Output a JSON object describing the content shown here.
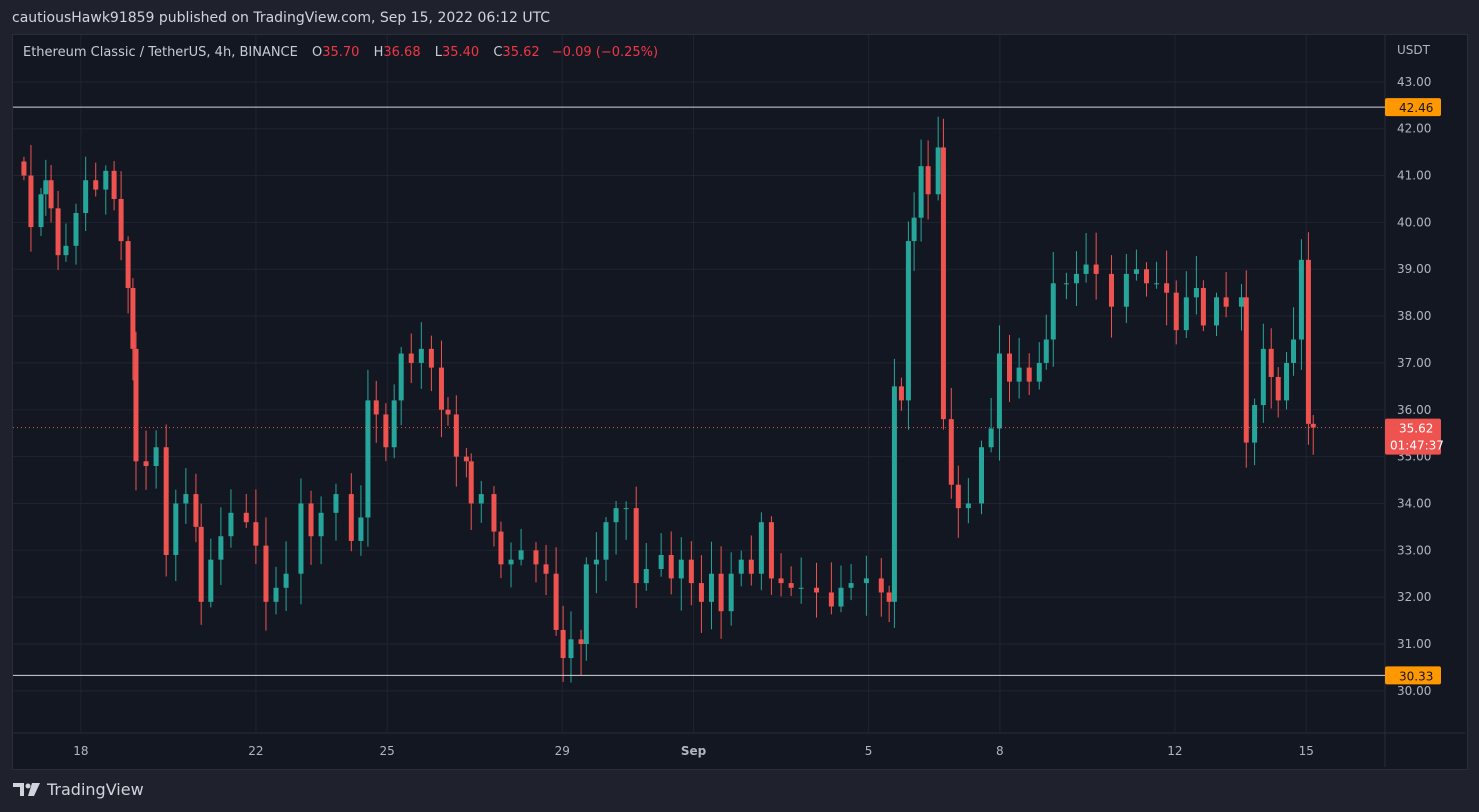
{
  "published": "cautiousHawk91859 published on TradingView.com, Sep 15, 2022 06:12 UTC",
  "brand": "TradingView",
  "legend": {
    "symbol": "Ethereum Classic / TetherUS, 4h, BINANCE",
    "o_label": "O",
    "o": "35.70",
    "h_label": "H",
    "h": "36.68",
    "l_label": "L",
    "l": "35.40",
    "c_label": "C",
    "c": "35.62",
    "change": "−0.09 (−0.25%)"
  },
  "colors": {
    "up": "#26a69a",
    "down": "#ef5350",
    "level": "#ff9800",
    "bg": "#131722",
    "grid": "#1f2430"
  },
  "chart_data": {
    "type": "candlestick",
    "title": "Ethereum Classic / TetherUS, 4h, BINANCE",
    "ylabel": "USDT",
    "ylim": [
      29.1,
      44.0
    ],
    "y_ticks": [
      "30.00",
      "31.00",
      "32.00",
      "33.00",
      "34.00",
      "35.00",
      "36.00",
      "37.00",
      "38.00",
      "39.00",
      "40.00",
      "41.00",
      "42.00",
      "43.00"
    ],
    "x_ticks": [
      {
        "day": 18,
        "label": "18"
      },
      {
        "day": 22,
        "label": "22"
      },
      {
        "day": 25,
        "label": "25"
      },
      {
        "day": 29,
        "label": "29"
      },
      {
        "day": 32,
        "label": "Sep"
      },
      {
        "day": 36,
        "label": "5"
      },
      {
        "day": 39,
        "label": "8"
      },
      {
        "day": 43,
        "label": "12"
      },
      {
        "day": 46,
        "label": "15"
      }
    ],
    "xlim_days": [
      16.45,
      47.8
    ],
    "x_unit": "day of Aug 2022 (32 = Sep 1)",
    "horizontal_levels": [
      {
        "price": 42.46,
        "label": "42.46"
      },
      {
        "price": 30.33,
        "label": "30.33"
      }
    ],
    "last_price": {
      "price": 35.62,
      "label": "35.62",
      "countdown": "01:47:37"
    },
    "candles_t_close": [
      [
        16.7,
        41.0
      ],
      [
        16.86,
        39.9
      ],
      [
        17.09,
        40.6
      ],
      [
        17.2,
        40.9
      ],
      [
        17.32,
        40.3
      ],
      [
        17.48,
        39.3
      ],
      [
        17.66,
        39.5
      ],
      [
        17.89,
        40.2
      ],
      [
        18.11,
        40.9
      ],
      [
        18.34,
        40.7
      ],
      [
        18.57,
        41.1
      ],
      [
        18.76,
        40.5
      ],
      [
        18.92,
        39.6
      ],
      [
        19.08,
        38.6
      ],
      [
        19.19,
        37.3
      ],
      [
        19.26,
        34.9
      ],
      [
        19.49,
        34.8
      ],
      [
        19.72,
        35.2
      ],
      [
        19.95,
        32.9
      ],
      [
        20.17,
        34.0
      ],
      [
        20.4,
        34.2
      ],
      [
        20.63,
        33.5
      ],
      [
        20.75,
        31.9
      ],
      [
        20.97,
        32.8
      ],
      [
        21.2,
        33.3
      ],
      [
        21.43,
        33.8
      ],
      [
        21.78,
        33.6
      ],
      [
        22.0,
        33.1
      ],
      [
        22.23,
        31.9
      ],
      [
        22.46,
        32.2
      ],
      [
        22.69,
        32.5
      ],
      [
        23.03,
        34.0
      ],
      [
        23.26,
        33.3
      ],
      [
        23.49,
        33.8
      ],
      [
        23.83,
        34.2
      ],
      [
        24.18,
        33.2
      ],
      [
        24.4,
        33.7
      ],
      [
        24.56,
        36.2
      ],
      [
        24.75,
        35.9
      ],
      [
        24.97,
        35.2
      ],
      [
        25.16,
        36.2
      ],
      [
        25.32,
        37.2
      ],
      [
        25.55,
        37.0
      ],
      [
        25.78,
        37.3
      ],
      [
        26.01,
        36.9
      ],
      [
        26.24,
        36.0
      ],
      [
        26.39,
        35.9
      ],
      [
        26.58,
        35.0
      ],
      [
        26.81,
        34.9
      ],
      [
        26.92,
        34.0
      ],
      [
        27.15,
        34.2
      ],
      [
        27.44,
        33.4
      ],
      [
        27.6,
        32.7
      ],
      [
        27.83,
        32.8
      ],
      [
        28.06,
        33.0
      ],
      [
        28.4,
        32.7
      ],
      [
        28.63,
        32.5
      ],
      [
        28.86,
        31.3
      ],
      [
        29.02,
        30.7
      ],
      [
        29.2,
        31.1
      ],
      [
        29.43,
        31.0
      ],
      [
        29.55,
        32.7
      ],
      [
        29.78,
        32.8
      ],
      [
        30.0,
        33.6
      ],
      [
        30.23,
        33.9
      ],
      [
        30.46,
        33.9
      ],
      [
        30.69,
        32.3
      ],
      [
        30.92,
        32.6
      ],
      [
        31.26,
        32.9
      ],
      [
        31.49,
        32.4
      ],
      [
        31.72,
        32.8
      ],
      [
        31.95,
        32.3
      ],
      [
        32.18,
        31.9
      ],
      [
        32.41,
        32.5
      ],
      [
        32.63,
        31.7
      ],
      [
        32.86,
        32.5
      ],
      [
        33.09,
        32.8
      ],
      [
        33.32,
        32.5
      ],
      [
        33.55,
        33.6
      ],
      [
        33.78,
        32.4
      ],
      [
        34.0,
        32.3
      ],
      [
        34.23,
        32.2
      ],
      [
        34.46,
        32.2
      ],
      [
        34.81,
        32.1
      ],
      [
        35.15,
        31.8
      ],
      [
        35.37,
        32.2
      ],
      [
        35.6,
        32.3
      ],
      [
        35.95,
        32.4
      ],
      [
        36.29,
        32.1
      ],
      [
        36.47,
        31.9
      ],
      [
        36.59,
        36.5
      ],
      [
        36.75,
        36.2
      ],
      [
        36.91,
        39.6
      ],
      [
        37.04,
        40.1
      ],
      [
        37.2,
        41.2
      ],
      [
        37.36,
        40.6
      ],
      [
        37.59,
        41.6
      ],
      [
        37.71,
        35.8
      ],
      [
        37.89,
        34.4
      ],
      [
        38.05,
        33.9
      ],
      [
        38.28,
        34.0
      ],
      [
        38.58,
        35.2
      ],
      [
        38.8,
        35.6
      ],
      [
        38.99,
        37.2
      ],
      [
        39.22,
        36.6
      ],
      [
        39.44,
        36.9
      ],
      [
        39.67,
        36.6
      ],
      [
        39.9,
        37.0
      ],
      [
        40.06,
        37.5
      ],
      [
        40.22,
        38.7
      ],
      [
        40.52,
        38.7
      ],
      [
        40.75,
        38.9
      ],
      [
        40.97,
        39.1
      ],
      [
        41.2,
        38.9
      ],
      [
        41.55,
        38.2
      ],
      [
        41.89,
        38.9
      ],
      [
        42.12,
        39.0
      ],
      [
        42.35,
        38.7
      ],
      [
        42.58,
        38.7
      ],
      [
        42.81,
        38.5
      ],
      [
        43.03,
        37.7
      ],
      [
        43.26,
        38.4
      ],
      [
        43.49,
        38.6
      ],
      [
        43.65,
        37.8
      ],
      [
        43.95,
        38.4
      ],
      [
        44.17,
        38.2
      ],
      [
        44.52,
        38.4
      ],
      [
        44.63,
        35.3
      ],
      [
        44.82,
        36.1
      ],
      [
        45.02,
        37.3
      ],
      [
        45.2,
        36.7
      ],
      [
        45.36,
        36.2
      ],
      [
        45.55,
        37.0
      ],
      [
        45.71,
        37.5
      ],
      [
        45.89,
        39.2
      ],
      [
        46.05,
        35.7
      ],
      [
        46.16,
        35.62
      ]
    ]
  }
}
